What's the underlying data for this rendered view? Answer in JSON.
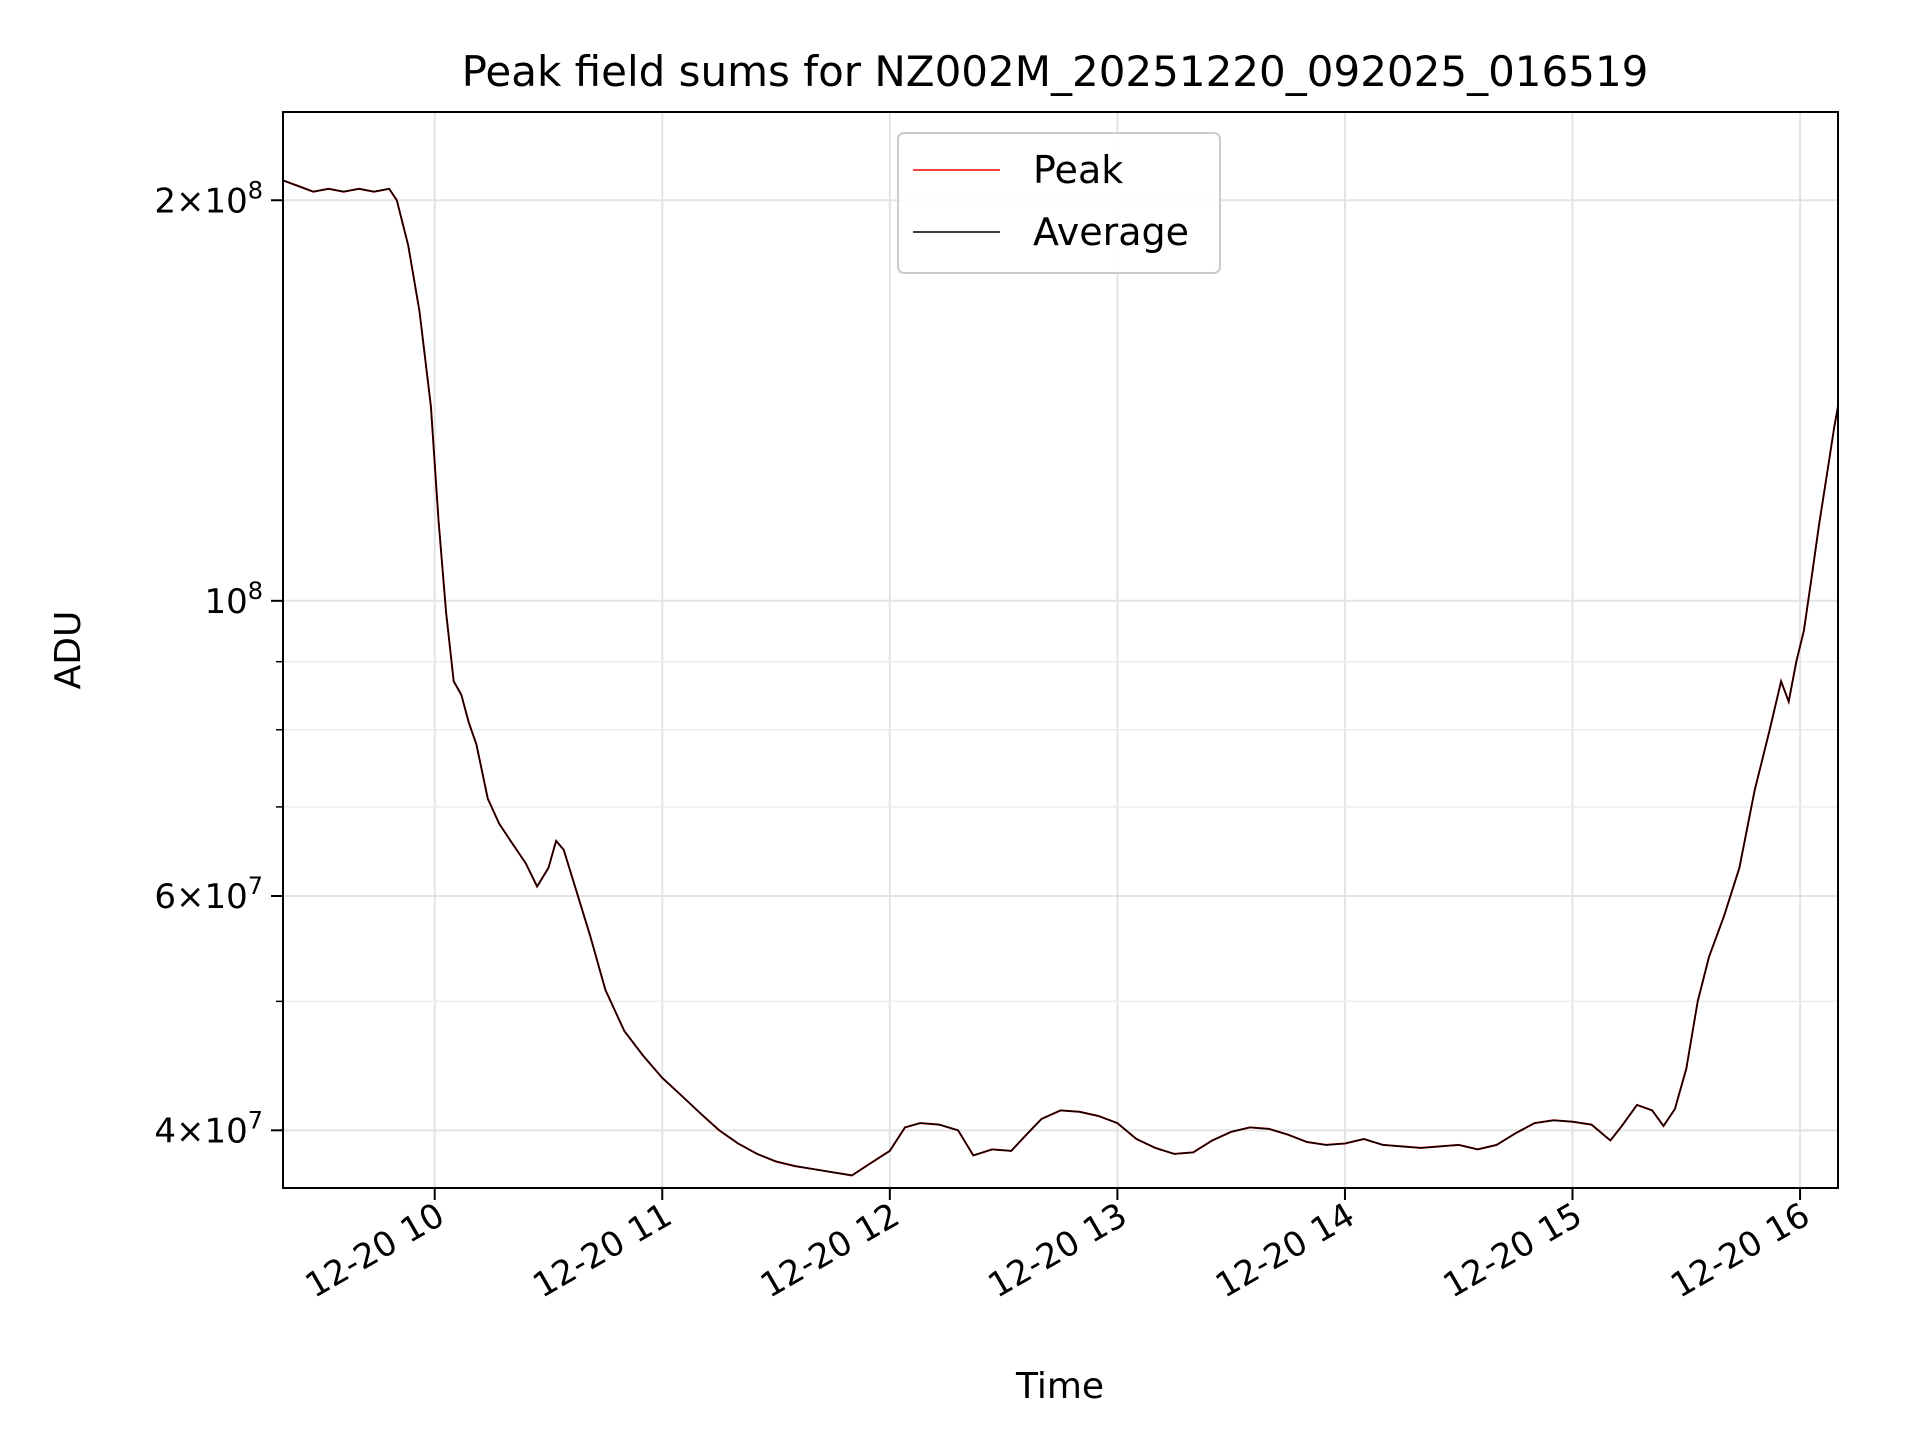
{
  "chart_data": {
    "type": "line",
    "title": "Peak field sums for NZ002M_20251220_092025_016519",
    "xlabel": "Time",
    "ylabel": "ADU",
    "yscale": "log",
    "grid": true,
    "legend_position": "top-center",
    "xlim": [
      "2025-12-20 09:20",
      "2025-12-20 16:10"
    ],
    "ylim": [
      36200000.0,
      233000000.0
    ],
    "x_ticks": [
      {
        "t": "2025-12-20 10:00",
        "label": "12-20 10"
      },
      {
        "t": "2025-12-20 11:00",
        "label": "12-20 11"
      },
      {
        "t": "2025-12-20 12:00",
        "label": "12-20 12"
      },
      {
        "t": "2025-12-20 13:00",
        "label": "12-20 13"
      },
      {
        "t": "2025-12-20 14:00",
        "label": "12-20 14"
      },
      {
        "t": "2025-12-20 15:00",
        "label": "12-20 15"
      },
      {
        "t": "2025-12-20 16:00",
        "label": "12-20 16"
      }
    ],
    "y_major_ticks": [
      {
        "value": 40000000,
        "mantissa": "4",
        "exponent": "7"
      },
      {
        "value": 60000000,
        "mantissa": "6",
        "exponent": "7"
      },
      {
        "value": 100000000,
        "mantissa": "",
        "exponent": "8"
      },
      {
        "value": 200000000,
        "mantissa": "2",
        "exponent": "8"
      }
    ],
    "y_minor_ticks": [
      50000000,
      70000000,
      80000000,
      90000000
    ],
    "series": [
      {
        "name": "Average",
        "color": "#000000",
        "points": [
          [
            "2025-12-20 09:20",
            207000000
          ],
          [
            "2025-12-20 09:24",
            205000000
          ],
          [
            "2025-12-20 09:28",
            203000000
          ],
          [
            "2025-12-20 09:32",
            204000000
          ],
          [
            "2025-12-20 09:36",
            203000000
          ],
          [
            "2025-12-20 09:40",
            204000000
          ],
          [
            "2025-12-20 09:44",
            203000000
          ],
          [
            "2025-12-20 09:48",
            204000000
          ],
          [
            "2025-12-20 09:50",
            200000000
          ],
          [
            "2025-12-20 09:53",
            185000000
          ],
          [
            "2025-12-20 09:56",
            165000000
          ],
          [
            "2025-12-20 09:59",
            140000000
          ],
          [
            "2025-12-20 10:01",
            115000000
          ],
          [
            "2025-12-20 10:03",
            98000000
          ],
          [
            "2025-12-20 10:05",
            87000000
          ],
          [
            "2025-12-20 10:07",
            85000000
          ],
          [
            "2025-12-20 10:09",
            81000000
          ],
          [
            "2025-12-20 10:11",
            78000000
          ],
          [
            "2025-12-20 10:14",
            71000000
          ],
          [
            "2025-12-20 10:17",
            68000000
          ],
          [
            "2025-12-20 10:20",
            66000000
          ],
          [
            "2025-12-20 10:24",
            63500000
          ],
          [
            "2025-12-20 10:27",
            61000000
          ],
          [
            "2025-12-20 10:30",
            63000000
          ],
          [
            "2025-12-20 10:32",
            66000000
          ],
          [
            "2025-12-20 10:34",
            65000000
          ],
          [
            "2025-12-20 10:37",
            61000000
          ],
          [
            "2025-12-20 10:41",
            56000000
          ],
          [
            "2025-12-20 10:45",
            51000000
          ],
          [
            "2025-12-20 10:50",
            47500000
          ],
          [
            "2025-12-20 10:55",
            45500000
          ],
          [
            "2025-12-20 11:00",
            43800000
          ],
          [
            "2025-12-20 11:05",
            42500000
          ],
          [
            "2025-12-20 11:10",
            41200000
          ],
          [
            "2025-12-20 11:15",
            40000000
          ],
          [
            "2025-12-20 11:20",
            39100000
          ],
          [
            "2025-12-20 11:25",
            38400000
          ],
          [
            "2025-12-20 11:30",
            37900000
          ],
          [
            "2025-12-20 11:35",
            37600000
          ],
          [
            "2025-12-20 11:40",
            37400000
          ],
          [
            "2025-12-20 11:45",
            37200000
          ],
          [
            "2025-12-20 11:50",
            37000000
          ],
          [
            "2025-12-20 11:55",
            37800000
          ],
          [
            "2025-12-20 12:00",
            38600000
          ],
          [
            "2025-12-20 12:04",
            40200000
          ],
          [
            "2025-12-20 12:08",
            40500000
          ],
          [
            "2025-12-20 12:13",
            40400000
          ],
          [
            "2025-12-20 12:18",
            40000000
          ],
          [
            "2025-12-20 12:22",
            38300000
          ],
          [
            "2025-12-20 12:27",
            38700000
          ],
          [
            "2025-12-20 12:32",
            38600000
          ],
          [
            "2025-12-20 12:36",
            39700000
          ],
          [
            "2025-12-20 12:40",
            40800000
          ],
          [
            "2025-12-20 12:45",
            41400000
          ],
          [
            "2025-12-20 12:50",
            41300000
          ],
          [
            "2025-12-20 12:55",
            41000000
          ],
          [
            "2025-12-20 13:00",
            40500000
          ],
          [
            "2025-12-20 13:05",
            39400000
          ],
          [
            "2025-12-20 13:10",
            38800000
          ],
          [
            "2025-12-20 13:15",
            38400000
          ],
          [
            "2025-12-20 13:20",
            38500000
          ],
          [
            "2025-12-20 13:25",
            39300000
          ],
          [
            "2025-12-20 13:30",
            39900000
          ],
          [
            "2025-12-20 13:35",
            40200000
          ],
          [
            "2025-12-20 13:40",
            40100000
          ],
          [
            "2025-12-20 13:45",
            39700000
          ],
          [
            "2025-12-20 13:50",
            39200000
          ],
          [
            "2025-12-20 13:55",
            39000000
          ],
          [
            "2025-12-20 14:00",
            39100000
          ],
          [
            "2025-12-20 14:05",
            39400000
          ],
          [
            "2025-12-20 14:10",
            39000000
          ],
          [
            "2025-12-20 14:15",
            38900000
          ],
          [
            "2025-12-20 14:20",
            38800000
          ],
          [
            "2025-12-20 14:25",
            38900000
          ],
          [
            "2025-12-20 14:30",
            39000000
          ],
          [
            "2025-12-20 14:35",
            38700000
          ],
          [
            "2025-12-20 14:40",
            39000000
          ],
          [
            "2025-12-20 14:45",
            39800000
          ],
          [
            "2025-12-20 14:50",
            40500000
          ],
          [
            "2025-12-20 14:55",
            40700000
          ],
          [
            "2025-12-20 15:00",
            40600000
          ],
          [
            "2025-12-20 15:05",
            40400000
          ],
          [
            "2025-12-20 15:10",
            39300000
          ],
          [
            "2025-12-20 15:13",
            40300000
          ],
          [
            "2025-12-20 15:17",
            41800000
          ],
          [
            "2025-12-20 15:21",
            41400000
          ],
          [
            "2025-12-20 15:24",
            40300000
          ],
          [
            "2025-12-20 15:27",
            41500000
          ],
          [
            "2025-12-20 15:30",
            44500000
          ],
          [
            "2025-12-20 15:33",
            50000000
          ],
          [
            "2025-12-20 15:36",
            54000000
          ],
          [
            "2025-12-20 15:40",
            58000000
          ],
          [
            "2025-12-20 15:44",
            63000000
          ],
          [
            "2025-12-20 15:48",
            72000000
          ],
          [
            "2025-12-20 15:52",
            80000000
          ],
          [
            "2025-12-20 15:55",
            87000000
          ],
          [
            "2025-12-20 15:57",
            84000000
          ],
          [
            "2025-12-20 15:59",
            90000000
          ],
          [
            "2025-12-20 16:01",
            95000000
          ],
          [
            "2025-12-20 16:03",
            104000000
          ],
          [
            "2025-12-20 16:05",
            114000000
          ],
          [
            "2025-12-20 16:07",
            124000000
          ],
          [
            "2025-12-20 16:09",
            135000000
          ],
          [
            "2025-12-20 16:10",
            140000000
          ]
        ]
      },
      {
        "name": "Peak",
        "color": "#ff0000",
        "points": []
      }
    ]
  }
}
